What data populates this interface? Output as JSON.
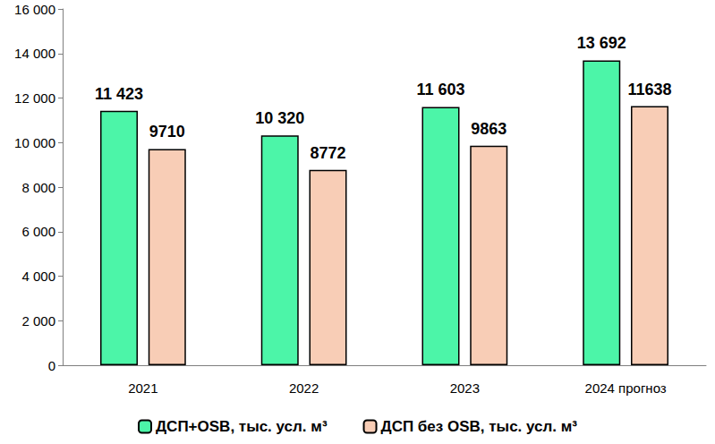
{
  "chart_data": {
    "type": "bar",
    "categories": [
      "2021",
      "2022",
      "2023",
      "2024 прогноз"
    ],
    "series": [
      {
        "name": "ДСП+OSB, тыс. усл. м³",
        "color": "#4cf5a8",
        "values": [
          11423,
          10320,
          11603,
          13692
        ],
        "value_labels": [
          "11 423",
          "10 320",
          "11 603",
          "13 692"
        ]
      },
      {
        "name": "ДСП без OSB, тыс. усл. м³",
        "color": "#f8cdb6",
        "values": [
          9710,
          8772,
          9863,
          11638
        ]
      }
    ],
    "ylim": [
      0,
      16000
    ],
    "yticks": [
      0,
      {
        "value": 2000,
        "label": "2 000"
      },
      {
        "value": 4000,
        "label": "4 000"
      },
      {
        "value": 6000,
        "label": "6 000"
      },
      {
        "value": 8000,
        "label": "8 000"
      },
      {
        "value": 10000,
        "label": "10 000"
      },
      {
        "value": 12000,
        "label": "12 000"
      },
      {
        "value": 14000,
        "label": "14 000"
      },
      {
        "value": 16000,
        "label": "16 000"
      }
    ],
    "grid": false,
    "legend": "bottom",
    "data_labels": true
  }
}
